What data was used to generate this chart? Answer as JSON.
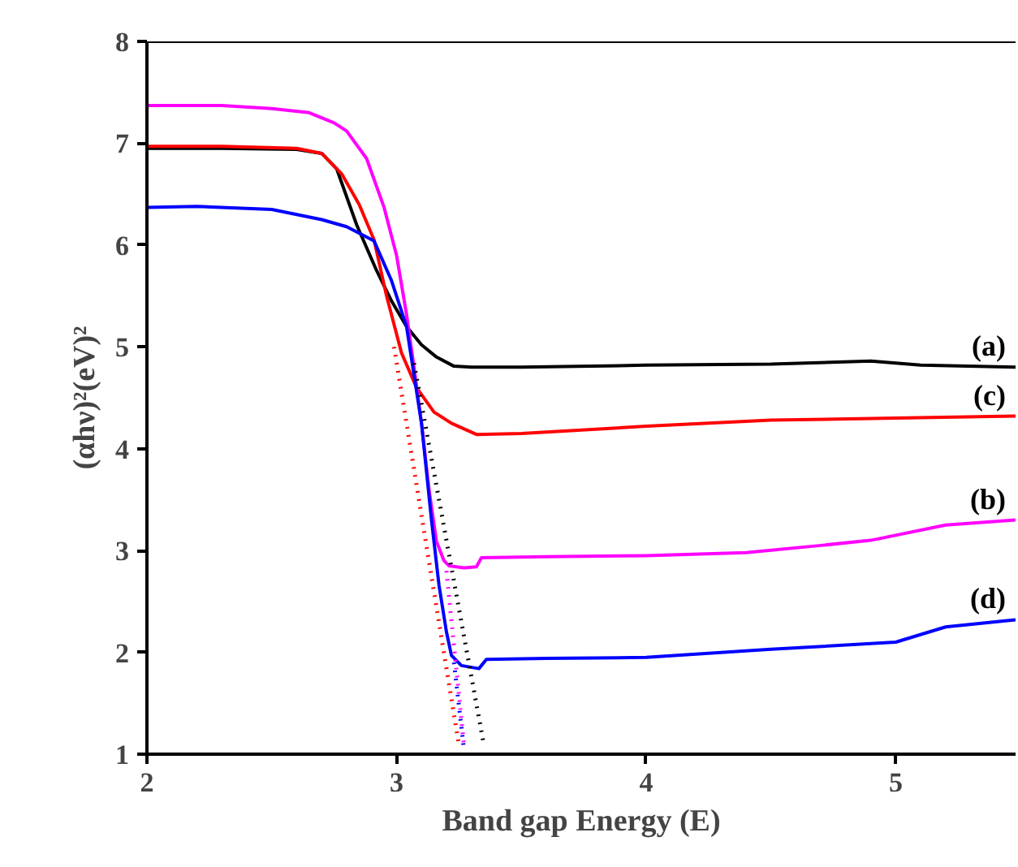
{
  "chart_data": {
    "type": "line",
    "xlabel": "Band gap Energy (E)",
    "ylabel": "(αhν)²(eV)²",
    "xlim": [
      2,
      5.48
    ],
    "ylim": [
      1,
      8
    ],
    "xticks": [
      2,
      3,
      4,
      5
    ],
    "yticks": [
      1,
      2,
      3,
      4,
      5,
      6,
      7,
      8
    ],
    "grid": false,
    "marker": "none",
    "series": [
      {
        "name": "(a)",
        "color": "#000000",
        "x": [
          2,
          2.3,
          2.6,
          2.7,
          2.76,
          2.84,
          2.92,
          2.98,
          3.04,
          3.1,
          3.16,
          3.23,
          3.3,
          3.5,
          4,
          4.5,
          4.9,
          5.1,
          5.48
        ],
        "values": [
          6.95,
          6.95,
          6.94,
          6.9,
          6.75,
          6.2,
          5.75,
          5.45,
          5.2,
          5.02,
          4.9,
          4.81,
          4.8,
          4.8,
          4.82,
          4.83,
          4.86,
          4.82,
          4.8
        ]
      },
      {
        "name": "(c)",
        "color": "#ff0000",
        "x": [
          2,
          2.3,
          2.6,
          2.7,
          2.78,
          2.85,
          2.91,
          2.96,
          3.02,
          3.08,
          3.15,
          3.22,
          3.32,
          3.5,
          4,
          4.5,
          5,
          5.48
        ],
        "values": [
          6.97,
          6.97,
          6.95,
          6.9,
          6.7,
          6.4,
          6.05,
          5.5,
          4.94,
          4.6,
          4.36,
          4.25,
          4.14,
          4.15,
          4.22,
          4.28,
          4.3,
          4.32
        ]
      },
      {
        "name": "(b)",
        "color": "#ff00ff",
        "x": [
          2,
          2.3,
          2.5,
          2.65,
          2.75,
          2.8,
          2.88,
          2.95,
          3.0,
          3.04,
          3.07,
          3.1,
          3.13,
          3.16,
          3.19,
          3.21,
          3.27,
          3.32,
          3.34,
          3.6,
          4,
          4.4,
          4.7,
          4.9,
          5.2,
          5.48
        ],
        "values": [
          7.37,
          7.37,
          7.34,
          7.3,
          7.2,
          7.12,
          6.85,
          6.37,
          5.9,
          5.32,
          4.8,
          4.25,
          3.6,
          3.09,
          2.9,
          2.85,
          2.83,
          2.84,
          2.93,
          2.94,
          2.95,
          2.98,
          3.05,
          3.1,
          3.25,
          3.3
        ]
      },
      {
        "name": "(d)",
        "color": "#0000ff",
        "x": [
          2,
          2.2,
          2.5,
          2.7,
          2.8,
          2.91,
          2.98,
          3.04,
          3.1,
          3.14,
          3.17,
          3.2,
          3.22,
          3.26,
          3.33,
          3.36,
          3.6,
          4,
          4.5,
          5,
          5.2,
          5.48
        ],
        "values": [
          6.37,
          6.38,
          6.35,
          6.25,
          6.18,
          6.04,
          5.65,
          5.2,
          4.25,
          3.3,
          2.66,
          2.2,
          1.97,
          1.87,
          1.84,
          1.93,
          1.94,
          1.95,
          2.03,
          2.1,
          2.25,
          2.32
        ]
      },
      {
        "type": "line",
        "line_style": "dotted",
        "color": "#ff0000",
        "x": [
          2.99,
          3.25
        ],
        "values": [
          5.0,
          1.09
        ]
      },
      {
        "type": "line",
        "line_style": "dotted",
        "color": "#ff00ff",
        "x": [
          3.2,
          3.27
        ],
        "values": [
          2.8,
          1.09
        ]
      },
      {
        "type": "line",
        "line_style": "dotted",
        "color": "#0000ff",
        "x": [
          3.23,
          3.27
        ],
        "values": [
          1.9,
          1.05
        ]
      },
      {
        "type": "line",
        "line_style": "dotted",
        "color": "#000000",
        "x": [
          3.07,
          3.35
        ],
        "values": [
          4.84,
          1.09
        ]
      }
    ]
  }
}
